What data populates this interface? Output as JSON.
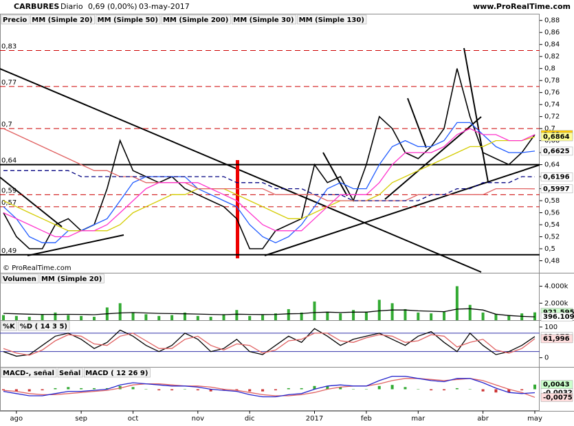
{
  "header": {
    "symbol": "CARBURES",
    "period": "Diario",
    "quote": "0,69 (0,00%)",
    "date": "03-may-2017",
    "site": "www.ProRealTime.com"
  },
  "copyright": "© ProRealTime.com",
  "chart_data": [
    {
      "type": "line",
      "categories": [
        null,
        "ago",
        null,
        null,
        null,
        null,
        "sep",
        null,
        null,
        null,
        "oct",
        null,
        null,
        null,
        null,
        "nov",
        null,
        null,
        null,
        "dic",
        null,
        null,
        null,
        null,
        "2017",
        null,
        null,
        null,
        "feb",
        null,
        null,
        null,
        "mar",
        null,
        null,
        null,
        null,
        "abr",
        null,
        null,
        null,
        "may"
      ],
      "ylim": [
        0.46,
        0.89
      ],
      "yticks": [
        {
          "value": 0.88,
          "label": "0,88"
        },
        {
          "value": 0.86,
          "label": "0,86"
        },
        {
          "value": 0.84,
          "label": "0,84"
        },
        {
          "value": 0.82,
          "label": "0,82"
        },
        {
          "value": 0.8,
          "label": "0,8"
        },
        {
          "value": 0.78,
          "label": "0,78"
        },
        {
          "value": 0.76,
          "label": "0,76"
        },
        {
          "value": 0.74,
          "label": "0,74"
        },
        {
          "value": 0.72,
          "label": "0,72"
        },
        {
          "value": 0.7,
          "label": "0,7"
        },
        {
          "value": 0.68,
          "label": "0,68"
        },
        {
          "value": 0.66,
          "label": "0,66"
        },
        {
          "value": 0.64,
          "label": "0,64"
        },
        {
          "value": 0.62,
          "label": "0,62"
        },
        {
          "value": 0.6,
          "label": "0,6"
        },
        {
          "value": 0.58,
          "label": "0,58"
        },
        {
          "value": 0.56,
          "label": "0,56"
        },
        {
          "value": 0.54,
          "label": "0,54"
        },
        {
          "value": 0.52,
          "label": "0,52"
        },
        {
          "value": 0.5,
          "label": "0,5"
        },
        {
          "value": 0.48,
          "label": "0,48"
        }
      ],
      "levels": [
        {
          "value": 0.83,
          "label": "0,83",
          "color": "#cc0000",
          "dashed": true
        },
        {
          "value": 0.77,
          "label": "0,77",
          "color": "#cc0000",
          "dashed": true
        },
        {
          "value": 0.7,
          "label": "0,7",
          "color": "#cc0000",
          "dashed": true
        },
        {
          "value": 0.64,
          "label": "0,64",
          "color": "#000000",
          "dashed": false
        },
        {
          "value": 0.59,
          "label": "0,59",
          "color": "#cc0000",
          "dashed": true
        },
        {
          "value": 0.57,
          "label": "0,57",
          "color": "#cc0000",
          "dashed": true
        },
        {
          "value": 0.49,
          "label": "0,49",
          "color": "#000000",
          "dashed": false
        }
      ],
      "tags": [
        {
          "value": 0.69,
          "label": "0,69",
          "color": "#ffcc00"
        },
        {
          "value": 0.6864,
          "label": "0,6864",
          "color": "#ffff99"
        },
        {
          "value": 0.6625,
          "label": "0,6625",
          "color": "#ffffff"
        },
        {
          "value": 0.6196,
          "label": "0,6196",
          "color": "#ffffff"
        },
        {
          "value": 0.5997,
          "label": "0,5997",
          "color": "#ffffff"
        }
      ],
      "series": [
        {
          "name": "Precio",
          "color": "#000000",
          "values": [
            0.56,
            0.52,
            0.5,
            0.5,
            0.54,
            0.55,
            0.53,
            0.54,
            0.6,
            0.68,
            0.63,
            0.62,
            0.61,
            0.62,
            0.6,
            0.59,
            0.58,
            0.57,
            0.55,
            0.5,
            0.5,
            0.53,
            0.54,
            0.55,
            0.64,
            0.61,
            0.62,
            0.58,
            0.64,
            0.72,
            0.7,
            0.66,
            0.65,
            0.67,
            0.7,
            0.8,
            0.72,
            0.66,
            0.65,
            0.64,
            0.66,
            0.69
          ]
        },
        {
          "name": "MM (Simple 20)",
          "color": "#1e5aff",
          "values": [
            0.57,
            0.55,
            0.52,
            0.51,
            0.51,
            0.53,
            0.53,
            0.54,
            0.55,
            0.58,
            0.61,
            0.62,
            0.62,
            0.62,
            0.62,
            0.6,
            0.59,
            0.58,
            0.57,
            0.54,
            0.52,
            0.51,
            0.52,
            0.54,
            0.57,
            0.6,
            0.61,
            0.6,
            0.6,
            0.64,
            0.67,
            0.68,
            0.67,
            0.67,
            0.68,
            0.71,
            0.71,
            0.69,
            0.67,
            0.66,
            0.66,
            0.6625
          ]
        },
        {
          "name": "MM (Simple 50)",
          "color": "#d4cc00",
          "values": [
            0.58,
            0.57,
            0.56,
            0.55,
            0.54,
            0.53,
            0.53,
            0.53,
            0.53,
            0.54,
            0.56,
            0.57,
            0.58,
            0.59,
            0.59,
            0.6,
            0.6,
            0.6,
            0.59,
            0.58,
            0.57,
            0.56,
            0.55,
            0.55,
            0.56,
            0.57,
            0.58,
            0.58,
            0.58,
            0.59,
            0.61,
            0.62,
            0.63,
            0.64,
            0.65,
            0.66,
            0.67,
            0.67,
            0.68,
            0.68,
            0.68,
            0.6864
          ]
        },
        {
          "name": "MM (Simple 200)",
          "color": "#e06060",
          "values": [
            0.7,
            0.69,
            0.68,
            0.67,
            0.66,
            0.65,
            0.64,
            0.63,
            0.63,
            0.62,
            0.62,
            0.61,
            0.61,
            0.61,
            0.61,
            0.6,
            0.6,
            0.6,
            0.6,
            0.6,
            0.6,
            0.59,
            0.59,
            0.59,
            0.59,
            0.58,
            0.58,
            0.58,
            0.58,
            0.58,
            0.58,
            0.58,
            0.59,
            0.59,
            0.59,
            0.59,
            0.59,
            0.59,
            0.6,
            0.6,
            0.6,
            0.5997
          ]
        },
        {
          "name": "MM (Simple 30)",
          "color": "#ff33cc",
          "values": [
            0.56,
            0.55,
            0.54,
            0.53,
            0.52,
            0.52,
            0.53,
            0.53,
            0.54,
            0.56,
            0.58,
            0.6,
            0.61,
            0.61,
            0.61,
            0.61,
            0.6,
            0.59,
            0.58,
            0.56,
            0.54,
            0.53,
            0.53,
            0.53,
            0.55,
            0.57,
            0.59,
            0.59,
            0.59,
            0.61,
            0.64,
            0.66,
            0.66,
            0.66,
            0.67,
            0.69,
            0.7,
            0.69,
            0.69,
            0.68,
            0.68,
            0.69
          ]
        },
        {
          "name": "MM (Simple 130)",
          "color": "#000080",
          "dashed": true,
          "values": [
            0.63,
            0.63,
            0.63,
            0.63,
            0.63,
            0.63,
            0.62,
            0.62,
            0.62,
            0.62,
            0.62,
            0.62,
            0.62,
            0.62,
            0.62,
            0.62,
            0.62,
            0.62,
            0.61,
            0.61,
            0.61,
            0.6,
            0.6,
            0.6,
            0.59,
            0.59,
            0.59,
            0.58,
            0.58,
            0.58,
            0.58,
            0.58,
            0.58,
            0.59,
            0.59,
            0.6,
            0.6,
            0.61,
            0.61,
            0.61,
            0.62,
            0.6196
          ]
        }
      ]
    },
    {
      "type": "bar",
      "ylim": [
        0,
        5500
      ],
      "yticks": [
        {
          "value": 4000,
          "label": "4.000k"
        },
        {
          "value": 2000,
          "label": "2.000k"
        }
      ],
      "tags": [
        {
          "value": 921.595,
          "label": "921.595",
          "color": "#ccffcc"
        },
        {
          "value": 396.109,
          "label": "396.109",
          "color": "#ffffff"
        }
      ],
      "series": [
        {
          "name": "Volumen",
          "color": "#33aa33",
          "type": "bar",
          "values": [
            600,
            500,
            400,
            700,
            900,
            600,
            500,
            400,
            1500,
            2000,
            900,
            700,
            500,
            600,
            900,
            500,
            400,
            700,
            1200,
            500,
            600,
            800,
            1300,
            900,
            2200,
            1000,
            800,
            1200,
            1000,
            2400,
            2000,
            1300,
            900,
            800,
            1000,
            4000,
            1800,
            900,
            700,
            600,
            800,
            921.595
          ]
        },
        {
          "name": "MM (Simple 20)",
          "color": "#000000",
          "type": "line",
          "values": [
            800,
            750,
            700,
            680,
            680,
            690,
            680,
            650,
            750,
            850,
            900,
            850,
            800,
            780,
            750,
            720,
            680,
            650,
            700,
            680,
            660,
            680,
            750,
            780,
            900,
            950,
            900,
            950,
            950,
            1100,
            1200,
            1200,
            1100,
            1050,
            1000,
            1300,
            1350,
            1200,
            700,
            550,
            450,
            396.109
          ]
        }
      ]
    },
    {
      "type": "line",
      "ylim": [
        -30,
        120
      ],
      "yticks": [
        100,
        0
      ],
      "hlines": [
        80,
        20
      ],
      "tags": [
        {
          "value": 68.975,
          "label": "68,975",
          "color": "#ffffff"
        },
        {
          "value": 61.996,
          "label": "61,996",
          "color": "#ffdddd"
        }
      ],
      "series": [
        {
          "name": "%K",
          "color": "#000000",
          "values": [
            20,
            5,
            10,
            40,
            70,
            80,
            60,
            30,
            50,
            90,
            70,
            40,
            20,
            40,
            80,
            60,
            20,
            30,
            60,
            20,
            10,
            40,
            70,
            50,
            95,
            70,
            40,
            60,
            70,
            80,
            60,
            40,
            70,
            85,
            50,
            20,
            80,
            40,
            10,
            20,
            40,
            68.975
          ]
        },
        {
          "name": "%D ( 14 3 5)",
          "color": "#e06060",
          "values": [
            30,
            15,
            8,
            25,
            55,
            75,
            70,
            45,
            40,
            70,
            80,
            55,
            30,
            30,
            60,
            70,
            40,
            25,
            45,
            40,
            15,
            25,
            55,
            60,
            80,
            80,
            55,
            50,
            65,
            75,
            70,
            50,
            55,
            75,
            70,
            35,
            50,
            60,
            25,
            15,
            30,
            61.996
          ]
        }
      ]
    },
    {
      "type": "bar",
      "ylim": [
        -0.02,
        0.02
      ],
      "tags": [
        {
          "value": 0.0043,
          "label": "0,0043",
          "color": "#ccffcc"
        },
        {
          "value": -0.0032,
          "label": "-0,0032",
          "color": "#ffffff"
        },
        {
          "value": -0.0075,
          "label": "-0,0075",
          "color": "#ffdddd"
        }
      ],
      "series": [
        {
          "name": "MACD-, señal",
          "color": "#33aa33",
          "negative_color": "#cc3333",
          "type": "bar",
          "values": [
            -0.001,
            -0.002,
            -0.002,
            -0.001,
            0.001,
            0.002,
            0.001,
            0.001,
            0.001,
            0.003,
            0.002,
            0,
            -0.001,
            -0.001,
            0,
            -0.001,
            -0.002,
            -0.001,
            -0.001,
            -0.002,
            -0.002,
            -0.001,
            0.001,
            0.001,
            0.003,
            0.003,
            0.002,
            0,
            0,
            0.003,
            0.004,
            0.002,
            0,
            -0.001,
            -0.001,
            0.001,
            0,
            -0.002,
            -0.003,
            -0.003,
            -0.001,
            0.0043
          ]
        },
        {
          "name": "Señal",
          "color": "#e06060",
          "type": "line",
          "values": [
            -0.001,
            -0.002,
            -0.004,
            -0.005,
            -0.005,
            -0.004,
            -0.003,
            -0.002,
            -0.001,
            0.001,
            0.004,
            0.005,
            0.005,
            0.004,
            0.003,
            0.003,
            0.002,
            0,
            -0.001,
            -0.003,
            -0.005,
            -0.006,
            -0.006,
            -0.005,
            -0.003,
            0,
            0.002,
            0.003,
            0.003,
            0.005,
            0.008,
            0.01,
            0.01,
            0.009,
            0.008,
            0.009,
            0.01,
            0.008,
            0.004,
            0,
            -0.003,
            -0.0075
          ]
        },
        {
          "name": "MACD ( 12 26 9)",
          "color": "#2222cc",
          "type": "line",
          "values": [
            -0.002,
            -0.004,
            -0.006,
            -0.006,
            -0.004,
            -0.002,
            -0.002,
            -0.001,
            0,
            0.004,
            0.006,
            0.005,
            0.004,
            0.003,
            0.003,
            0.002,
            0,
            -0.001,
            -0.002,
            -0.005,
            -0.007,
            -0.007,
            -0.005,
            -0.004,
            0,
            0.003,
            0.004,
            0.003,
            0.003,
            0.008,
            0.012,
            0.012,
            0.01,
            0.008,
            0.007,
            0.01,
            0.01,
            0.006,
            0.001,
            -0.003,
            -0.004,
            -0.0032
          ]
        }
      ]
    }
  ]
}
